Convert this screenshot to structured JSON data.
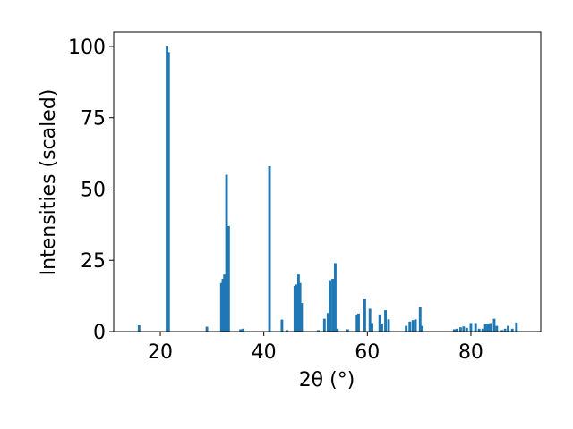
{
  "chart_data": {
    "type": "bar",
    "x_label": "2θ (°)",
    "y_label": "Intensities (scaled)",
    "x": [
      15.9,
      21.3,
      21.6,
      29.0,
      31.8,
      32.1,
      32.4,
      32.8,
      33.2,
      35.5,
      36.0,
      41.1,
      43.5,
      44.5,
      46.0,
      46.3,
      46.7,
      47.0,
      47.3,
      50.5,
      51.7,
      52.4,
      52.8,
      53.3,
      53.8,
      54.2,
      56.2,
      58.0,
      58.3,
      59.5,
      60.5,
      60.9,
      62.4,
      62.8,
      63.5,
      64.1,
      67.5,
      68.2,
      68.8,
      69.3,
      70.2,
      70.6,
      76.8,
      77.3,
      78.0,
      78.6,
      79.2,
      80.0,
      80.9,
      81.6,
      82.3,
      82.8,
      83.3,
      83.8,
      84.5,
      85.0,
      86.0,
      86.6,
      87.2,
      88.0,
      88.8
    ],
    "values": [
      2.2,
      100,
      98,
      1.7,
      17,
      18.5,
      20,
      55,
      37,
      0.8,
      1,
      58,
      4.2,
      0.5,
      16,
      16.5,
      20,
      17,
      10,
      0.5,
      4.5,
      6.5,
      18,
      18.5,
      24,
      1,
      0.8,
      6,
      6.3,
      11.5,
      8,
      3,
      6,
      2.5,
      7.5,
      4.3,
      2,
      3.5,
      4,
      4.3,
      8.5,
      2,
      0.8,
      1,
      1.5,
      1.8,
      1.3,
      3,
      3,
      1,
      1,
      2.5,
      2.8,
      3,
      4.5,
      2,
      0.5,
      1,
      2,
      1,
      3.2
    ],
    "color": "#1f77b4",
    "xlim": [
      11,
      93.5
    ],
    "xticks": [
      20,
      40,
      60,
      80
    ],
    "ylim": [
      0,
      105
    ],
    "yticks": [
      0,
      25,
      50,
      75,
      100
    ]
  }
}
